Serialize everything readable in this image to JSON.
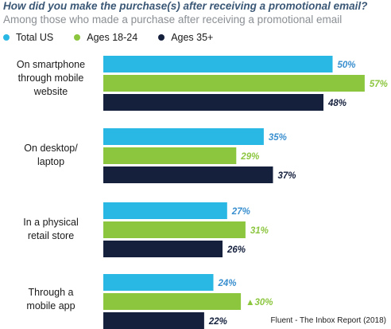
{
  "title": "How did you make the purchase(s) after receiving a promotional email?",
  "subtitle": "Among those who made a purchase after receiving a promotional email",
  "source": "Fluent -  The Inbox Report (2018)",
  "colors": {
    "total_us": "#29b7e3",
    "ages_18_24": "#8cc63f",
    "ages_35_plus": "#15203d",
    "total_us_label": "#3a8fcf",
    "ages_18_24_label": "#8cc63f",
    "ages_35_plus_label": "#15203d"
  },
  "chart_data": {
    "type": "bar",
    "orientation": "horizontal",
    "title": "How did you make the purchase(s) after receiving a promotional email?",
    "subtitle": "Among those who made a purchase after receiving a promotional email",
    "legend_position": "top-left",
    "grid": false,
    "categories": [
      [
        "On smartphone",
        "through mobile",
        "website"
      ],
      [
        "On desktop/",
        "laptop"
      ],
      [
        "In a physical",
        "retail store"
      ],
      [
        "Through a",
        "mobile app"
      ]
    ],
    "series": [
      {
        "name": "Total US",
        "values": [
          50,
          35,
          27,
          24
        ],
        "labels": [
          "50%",
          "35%",
          "27%",
          "24%"
        ]
      },
      {
        "name": "Ages 18-24",
        "values": [
          57,
          29,
          31,
          30
        ],
        "labels": [
          "57%",
          "29%",
          "31%",
          "▲30%"
        ]
      },
      {
        "name": "Ages 35+",
        "values": [
          48,
          37,
          26,
          22
        ],
        "labels": [
          "48%",
          "37%",
          "26%",
          "22%"
        ]
      }
    ],
    "xlim": [
      0,
      60
    ],
    "unit": "%"
  }
}
